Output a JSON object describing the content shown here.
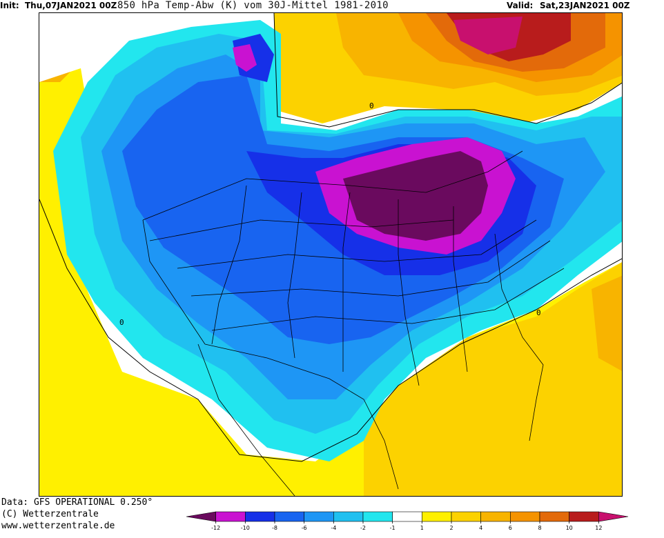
{
  "header": {
    "init_label": "Init:",
    "init_value": "Thu,07JAN2021 00Z",
    "title": "850 hPa Temp-Abw (K) vom 30J-Mittel 1981-2010",
    "valid_label": "Valid:",
    "valid_value": "Sat,23JAN2021 00Z"
  },
  "footer": {
    "data_line": "Data: GFS OPERATIONAL 0.250°",
    "copyright": "(C) Wetterzentrale",
    "url": "www.wetterzentrale.de"
  },
  "map": {
    "contour_label": "0"
  },
  "legend": {
    "bins": [
      {
        "from": "-14",
        "to": "-12",
        "color": "#6a0a5e"
      },
      {
        "from": "-12",
        "to": "-10",
        "color": "#c912d1"
      },
      {
        "from": "-10",
        "to": "-8",
        "color": "#1630e8"
      },
      {
        "from": "-8",
        "to": "-6",
        "color": "#1864f0"
      },
      {
        "from": "-6",
        "to": "-4",
        "color": "#1e96f5"
      },
      {
        "from": "-4",
        "to": "-2",
        "color": "#20c0f0"
      },
      {
        "from": "-2",
        "to": "-1",
        "color": "#22e6ee"
      },
      {
        "from": "-1",
        "to": "1",
        "color": "#ffffff"
      },
      {
        "from": "1",
        "to": "2",
        "color": "#fff000"
      },
      {
        "from": "2",
        "to": "4",
        "color": "#fcd200"
      },
      {
        "from": "4",
        "to": "6",
        "color": "#f8b400"
      },
      {
        "from": "6",
        "to": "8",
        "color": "#f59300"
      },
      {
        "from": "8",
        "to": "10",
        "color": "#e36a0a"
      },
      {
        "from": "10",
        "to": "12",
        "color": "#b81c1c"
      },
      {
        "from": "12",
        "to": "14",
        "color": "#c8106e"
      }
    ],
    "tick_labels": [
      "-12",
      "-10",
      "-8",
      "-6",
      "-4",
      "-2",
      "-1",
      "1",
      "2",
      "4",
      "6",
      "8",
      "10",
      "12"
    ]
  }
}
